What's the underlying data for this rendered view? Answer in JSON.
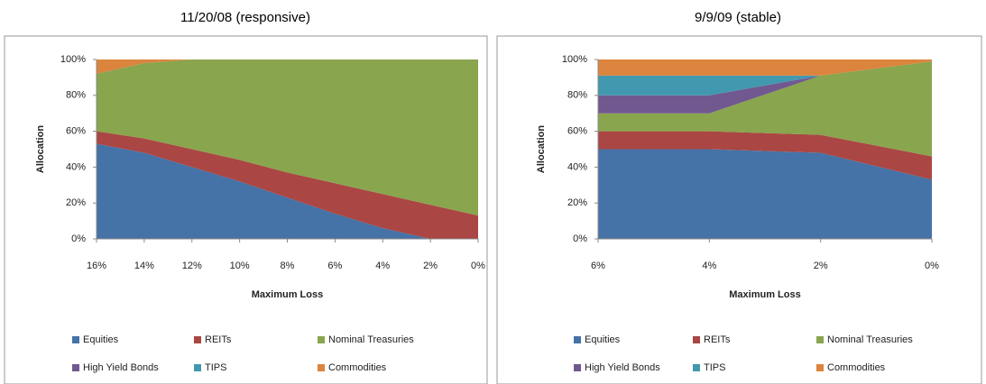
{
  "chart_data": [
    {
      "type": "area",
      "stacked": true,
      "title": "11/20/08 (responsive)",
      "xlabel": "Maximum Loss",
      "ylabel": "Allocation",
      "x": [
        16,
        14,
        12,
        10,
        8,
        6,
        4,
        2,
        0
      ],
      "xlim": [
        16,
        0
      ],
      "xticks": [
        {
          "value": 16,
          "label": "16%"
        },
        {
          "value": 14,
          "label": "14%"
        },
        {
          "value": 12,
          "label": "12%"
        },
        {
          "value": 10,
          "label": "10%"
        },
        {
          "value": 8,
          "label": "8%"
        },
        {
          "value": 6,
          "label": "6%"
        },
        {
          "value": 4,
          "label": "4%"
        },
        {
          "value": 2,
          "label": "2%"
        },
        {
          "value": 0,
          "label": "0%"
        }
      ],
      "ylim": [
        0,
        100
      ],
      "yticks": [
        {
          "value": 0,
          "label": "0%"
        },
        {
          "value": 20,
          "label": "20%"
        },
        {
          "value": 40,
          "label": "40%"
        },
        {
          "value": 60,
          "label": "60%"
        },
        {
          "value": 80,
          "label": "80%"
        },
        {
          "value": 100,
          "label": "100%"
        }
      ],
      "grid": false,
      "legend": "bottom",
      "series": [
        {
          "name": "Equities",
          "color": "#4572a7",
          "values": [
            53,
            48,
            40,
            32,
            23,
            14,
            6,
            0,
            0
          ]
        },
        {
          "name": "REITs",
          "color": "#aa4643",
          "values": [
            7,
            8,
            10,
            12,
            14,
            17,
            19,
            19,
            13
          ]
        },
        {
          "name": "Nominal Treasuries",
          "color": "#89a54e",
          "values": [
            32,
            42,
            50,
            56,
            63,
            69,
            75,
            81,
            87
          ]
        },
        {
          "name": "High Yield Bonds",
          "color": "#71588f",
          "values": [
            0,
            0,
            0,
            0,
            0,
            0,
            0,
            0,
            0
          ]
        },
        {
          "name": "TIPS",
          "color": "#4198af",
          "values": [
            0,
            0,
            0,
            0,
            0,
            0,
            0,
            0,
            0
          ]
        },
        {
          "name": "Commodities",
          "color": "#db843d",
          "values": [
            8,
            2,
            0,
            0,
            0,
            0,
            0,
            0,
            0
          ]
        }
      ]
    },
    {
      "type": "area",
      "stacked": true,
      "title": "9/9/09 (stable)",
      "xlabel": "Maximum Loss",
      "ylabel": "Allocation",
      "x": [
        6,
        4,
        2,
        0
      ],
      "xlim": [
        6,
        0
      ],
      "xticks": [
        {
          "value": 6,
          "label": "6%"
        },
        {
          "value": 4,
          "label": "4%"
        },
        {
          "value": 2,
          "label": "2%"
        },
        {
          "value": 0,
          "label": "0%"
        }
      ],
      "ylim": [
        0,
        100
      ],
      "yticks": [
        {
          "value": 0,
          "label": "0%"
        },
        {
          "value": 20,
          "label": "20%"
        },
        {
          "value": 40,
          "label": "40%"
        },
        {
          "value": 60,
          "label": "60%"
        },
        {
          "value": 80,
          "label": "80%"
        },
        {
          "value": 100,
          "label": "100%"
        }
      ],
      "grid": false,
      "legend": "bottom",
      "series": [
        {
          "name": "Equities",
          "color": "#4572a7",
          "values": [
            50,
            50,
            48,
            33
          ]
        },
        {
          "name": "REITs",
          "color": "#aa4643",
          "values": [
            10,
            10,
            10,
            13
          ]
        },
        {
          "name": "Nominal Treasuries",
          "color": "#89a54e",
          "values": [
            10,
            10,
            33,
            53
          ]
        },
        {
          "name": "High Yield Bonds",
          "color": "#71588f",
          "values": [
            10,
            10,
            0,
            0
          ]
        },
        {
          "name": "TIPS",
          "color": "#4198af",
          "values": [
            11,
            11,
            0,
            0
          ]
        },
        {
          "name": "Commodities",
          "color": "#db843d",
          "values": [
            9,
            9,
            9,
            1
          ]
        }
      ]
    }
  ]
}
